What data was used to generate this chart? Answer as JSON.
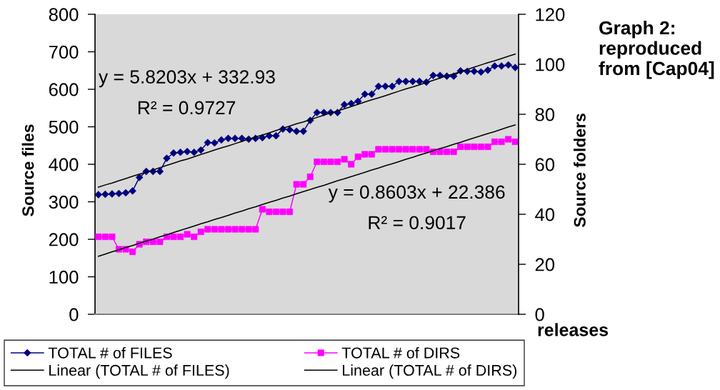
{
  "chart_data": {
    "type": "line",
    "categories": [
      null,
      null,
      null,
      null,
      null,
      null,
      null,
      null,
      null,
      null,
      null,
      null,
      null,
      null,
      null,
      null,
      null,
      null,
      null,
      null,
      null,
      null,
      null,
      null,
      null,
      null,
      null,
      null,
      null,
      null,
      null,
      null,
      null,
      null,
      null,
      null,
      null,
      null,
      null,
      null,
      null,
      null,
      null,
      null,
      null,
      null,
      null,
      null,
      null,
      null,
      null,
      null,
      null,
      null,
      null,
      null,
      null,
      null,
      null,
      null,
      null,
      null
    ],
    "series": [
      {
        "name": "TOTAL # of FILES",
        "color": "#000080",
        "marker": "diamond",
        "values": [
          319,
          320,
          321,
          322,
          324,
          329,
          365,
          381,
          381,
          381,
          416,
          430,
          432,
          434,
          432,
          438,
          458,
          457,
          465,
          469,
          469,
          469,
          467,
          469,
          471,
          476,
          476,
          494,
          492,
          488,
          488,
          517,
          538,
          538,
          538,
          538,
          559,
          562,
          568,
          587,
          587,
          608,
          608,
          608,
          621,
          621,
          621,
          621,
          619,
          637,
          637,
          635,
          635,
          649,
          648,
          648,
          646,
          651,
          662,
          662,
          665,
          658
        ]
      },
      {
        "name": "TOTAL # of DIRS",
        "color": "#ff00ff",
        "marker": "square",
        "axis": "y2",
        "values": [
          31,
          31,
          31,
          26,
          26,
          25,
          28,
          29,
          29,
          29,
          31,
          31,
          31,
          32,
          31,
          33,
          34,
          34,
          34,
          34,
          34,
          34,
          34,
          34,
          42,
          41,
          41,
          41,
          41,
          52,
          52,
          55,
          61,
          61,
          61,
          61,
          62,
          60,
          63,
          64,
          64,
          66,
          66,
          66,
          66,
          66,
          66,
          66,
          66,
          65,
          65,
          65,
          65,
          67,
          67,
          67,
          67,
          67,
          69,
          69,
          70,
          69
        ]
      },
      {
        "name": "Linear (TOTAL # of FILES)",
        "color": "#000000",
        "marker": "none",
        "values": [
          339,
          345,
          350,
          356,
          362,
          368,
          374,
          379,
          385,
          391,
          397,
          403,
          409,
          414,
          420,
          426,
          432,
          438,
          444,
          449,
          455,
          461,
          467,
          473,
          478,
          484,
          490,
          496,
          502,
          508,
          513,
          519,
          525,
          531,
          537,
          542,
          548,
          554,
          560,
          566,
          572,
          577,
          583,
          589,
          595,
          601,
          606,
          612,
          618,
          624,
          630,
          636,
          641,
          647,
          653,
          659,
          665,
          671,
          676,
          682,
          688,
          694
        ]
      },
      {
        "name": "Linear (TOTAL # of DIRS)",
        "color": "#000000",
        "marker": "none",
        "axis": "y2",
        "values": [
          23.2,
          24.1,
          25.0,
          25.8,
          26.7,
          27.5,
          28.4,
          29.3,
          30.1,
          31.0,
          31.8,
          32.7,
          33.6,
          34.4,
          35.3,
          36.2,
          37.0,
          37.9,
          38.7,
          39.6,
          40.5,
          41.3,
          42.2,
          43.0,
          43.9,
          44.8,
          45.6,
          46.5,
          47.3,
          48.2,
          49.1,
          49.9,
          50.8,
          51.6,
          52.5,
          53.4,
          54.2,
          55.1,
          55.9,
          56.8,
          57.7,
          58.5,
          59.4,
          60.2,
          61.1,
          62.0,
          62.8,
          63.7,
          64.5,
          65.4,
          66.3,
          67.1,
          68.0,
          68.8,
          69.7,
          70.6,
          71.4,
          72.3,
          73.1,
          74.0,
          74.9,
          75.7
        ]
      }
    ],
    "xlabel": "releases",
    "ylabel": "Source files",
    "y2label": "Source folders",
    "ylim": [
      0,
      800
    ],
    "yticks": [
      0,
      100,
      200,
      300,
      400,
      500,
      600,
      700,
      800
    ],
    "y2lim": [
      0,
      120
    ],
    "y2ticks": [
      0,
      20,
      40,
      60,
      80,
      100,
      120
    ],
    "annotations": [
      "y = 5.8203x + 332.93",
      "R² = 0.9727",
      "y = 0.8603x + 22.386",
      "R² = 0.9017",
      "Graph 2:\nreproduced\nfrom [Cap04]"
    ],
    "legend": "bottom"
  }
}
